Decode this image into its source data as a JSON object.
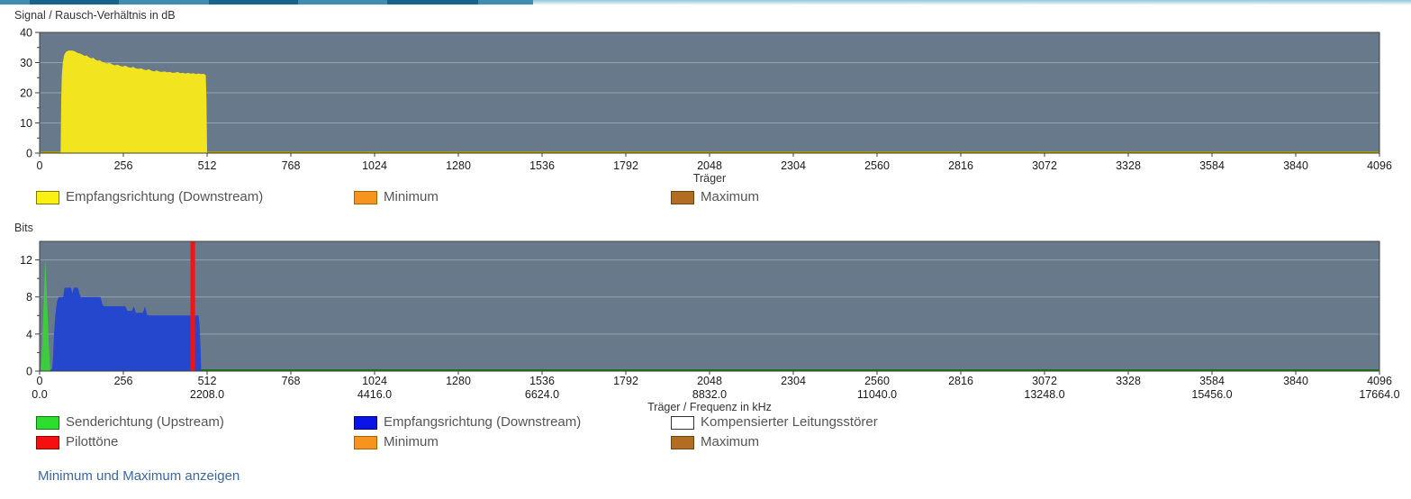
{
  "header": {
    "title_top": "Signal / Rausch-Verhältnis in dB",
    "title_bottom": "Bits"
  },
  "footer": {
    "link_label": "Minimum und Maximum anzeigen"
  },
  "colors": {
    "plot_bg": "#69798c",
    "axis": "#3f3f3f",
    "grid": "#96a2b0",
    "tick_label": "#1a1a1a",
    "legend_text": "#555555",
    "link": "#3a67a8",
    "snr_downstream": "#f2e41f",
    "snr_baseline": "#a89e00",
    "bits_downstream": "#2447cd",
    "bits_upstream": "#3ecc3e",
    "bits_baseline": "#157815",
    "pilot": "#f01414",
    "minimum": "#f7941e",
    "maximum": "#b26d22"
  },
  "chart_data": [
    {
      "type": "area",
      "title": "Signal / Rausch-Verhältnis in dB",
      "xlabel": "Träger",
      "ylabel": "dB",
      "xlim": [
        0,
        4096
      ],
      "ylim": [
        0,
        40
      ],
      "y_display_max": 40,
      "grid": true,
      "legend_position": "bottom",
      "plot_bg": "#69798c",
      "x_ticks": [
        0,
        256,
        512,
        768,
        1024,
        1280,
        1536,
        1792,
        2048,
        2304,
        2560,
        2816,
        3072,
        3328,
        3584,
        3840,
        4096
      ],
      "y_ticks": [
        0,
        10,
        20,
        30,
        40
      ],
      "y_minor_ticks": [
        5,
        15,
        25,
        35
      ],
      "series": [
        {
          "name": "Empfangsrichtung (Downstream)",
          "color": "#f2e41f",
          "baseline_color": "#a89e00",
          "points": [
            [
              64,
              0
            ],
            [
              66,
              18
            ],
            [
              68,
              26
            ],
            [
              71,
              30
            ],
            [
              75,
              32.5
            ],
            [
              80,
              33.5
            ],
            [
              88,
              34
            ],
            [
              100,
              34
            ],
            [
              108,
              33.7
            ],
            [
              116,
              33.2
            ],
            [
              124,
              33
            ],
            [
              130,
              32.7
            ],
            [
              138,
              32.2
            ],
            [
              144,
              32.4
            ],
            [
              150,
              31.8
            ],
            [
              158,
              31.4
            ],
            [
              164,
              31.6
            ],
            [
              170,
              31
            ],
            [
              178,
              30.6
            ],
            [
              184,
              30.8
            ],
            [
              190,
              30.3
            ],
            [
              198,
              30
            ],
            [
              206,
              29.7
            ],
            [
              214,
              29.9
            ],
            [
              222,
              29.4
            ],
            [
              230,
              29.1
            ],
            [
              238,
              29.3
            ],
            [
              246,
              28.9
            ],
            [
              254,
              28.7
            ],
            [
              262,
              29
            ],
            [
              270,
              28.5
            ],
            [
              278,
              28.3
            ],
            [
              286,
              28.6
            ],
            [
              294,
              28.1
            ],
            [
              302,
              27.9
            ],
            [
              310,
              28.1
            ],
            [
              318,
              27.7
            ],
            [
              326,
              27.5
            ],
            [
              334,
              27.8
            ],
            [
              342,
              27.3
            ],
            [
              350,
              27.1
            ],
            [
              358,
              27.4
            ],
            [
              366,
              27
            ],
            [
              374,
              26.9
            ],
            [
              382,
              27.1
            ],
            [
              390,
              26.8
            ],
            [
              398,
              26.9
            ],
            [
              406,
              26.6
            ],
            [
              414,
              26.7
            ],
            [
              422,
              26.9
            ],
            [
              430,
              26.5
            ],
            [
              438,
              26.6
            ],
            [
              446,
              26.4
            ],
            [
              454,
              26.6
            ],
            [
              462,
              26.3
            ],
            [
              470,
              26.5
            ],
            [
              478,
              26.2
            ],
            [
              486,
              26.4
            ],
            [
              494,
              26.2
            ],
            [
              500,
              26.3
            ],
            [
              505,
              26.1
            ],
            [
              508,
              25.8
            ],
            [
              510,
              18
            ],
            [
              512,
              0
            ]
          ]
        }
      ],
      "legend_rows": [
        [
          {
            "label": "Empfangsrichtung (Downstream)",
            "color": "#faf112",
            "border": "#827a00"
          },
          {
            "label": "Minimum",
            "color": "#f7941e",
            "border": "#a56200"
          },
          {
            "label": "Maximum",
            "color": "#b26d22",
            "border": "#6f450e"
          }
        ]
      ]
    },
    {
      "type": "area",
      "title": "Bits",
      "xlabel": "Träger / Frequenz in kHz",
      "ylabel": "Bits",
      "xlim": [
        0,
        4096
      ],
      "ylim": [
        0,
        12
      ],
      "y_display_max": 14,
      "grid": true,
      "legend_position": "bottom",
      "plot_bg": "#69798c",
      "x_ticks": [
        0,
        256,
        512,
        768,
        1024,
        1280,
        1536,
        1792,
        2048,
        2304,
        2560,
        2816,
        3072,
        3328,
        3584,
        3840,
        4096
      ],
      "x_freq_ticks": [
        {
          "at": 0,
          "label": "0.0"
        },
        {
          "at": 512,
          "label": "2208.0"
        },
        {
          "at": 1024,
          "label": "4416.0"
        },
        {
          "at": 1536,
          "label": "6624.0"
        },
        {
          "at": 2048,
          "label": "8832.0"
        },
        {
          "at": 2560,
          "label": "11040.0"
        },
        {
          "at": 3072,
          "label": "13248.0"
        },
        {
          "at": 3584,
          "label": "15456.0"
        },
        {
          "at": 4096,
          "label": "17664.0"
        }
      ],
      "y_ticks": [
        0,
        4,
        8,
        12
      ],
      "y_minor_ticks": [
        2,
        6,
        10
      ],
      "series": [
        {
          "name": "Empfangsrichtung (Downstream)",
          "color": "#2447cd",
          "baseline_color": null,
          "points": [
            [
              38,
              0
            ],
            [
              41,
              1.5
            ],
            [
              44,
              4
            ],
            [
              48,
              6
            ],
            [
              53,
              7.5
            ],
            [
              58,
              8
            ],
            [
              66,
              8
            ],
            [
              72,
              8
            ],
            [
              76,
              9
            ],
            [
              96,
              9
            ],
            [
              100,
              8.4
            ],
            [
              105,
              9
            ],
            [
              117,
              9
            ],
            [
              122,
              8.3
            ],
            [
              126,
              8
            ],
            [
              186,
              8
            ],
            [
              192,
              7.2
            ],
            [
              196,
              7
            ],
            [
              262,
              7
            ],
            [
              268,
              6.5
            ],
            [
              282,
              6.5
            ],
            [
              288,
              7
            ],
            [
              294,
              6.3
            ],
            [
              316,
              6.3
            ],
            [
              322,
              7
            ],
            [
              328,
              6.1
            ],
            [
              336,
              6
            ],
            [
              480,
              6
            ],
            [
              486,
              6
            ],
            [
              489,
              5
            ],
            [
              492,
              2.5
            ],
            [
              494,
              0
            ]
          ]
        },
        {
          "name": "Senderichtung (Upstream)",
          "color": "#3ecc3e",
          "baseline_color": "#157815",
          "points": [
            [
              3,
              0
            ],
            [
              6,
              1.5
            ],
            [
              10,
              5
            ],
            [
              14,
              9
            ],
            [
              17,
              12
            ],
            [
              20,
              10
            ],
            [
              24,
              6.5
            ],
            [
              28,
              3
            ],
            [
              31,
              1
            ],
            [
              33,
              0
            ]
          ]
        },
        {
          "name": "Pilottöne",
          "type": "vline",
          "color": "#f01414",
          "x": 468,
          "band_width": 14
        }
      ],
      "legend_rows": [
        [
          {
            "label": "Senderichtung (Upstream)",
            "color": "#2ede2e",
            "border": "#0c7a0c"
          },
          {
            "label": "Empfangsrichtung (Downstream)",
            "color": "#0a14e6",
            "border": "#000080"
          },
          {
            "label": "Kompensierter Leitungsstörer",
            "color": "#ffffff",
            "border": "#333333"
          }
        ],
        [
          {
            "label": "Pilottöne",
            "color": "#f50f0f",
            "border": "#8a0606"
          },
          {
            "label": "Minimum",
            "color": "#f7941e",
            "border": "#a56200"
          },
          {
            "label": "Maximum",
            "color": "#b26d22",
            "border": "#6f450e"
          }
        ]
      ]
    }
  ]
}
